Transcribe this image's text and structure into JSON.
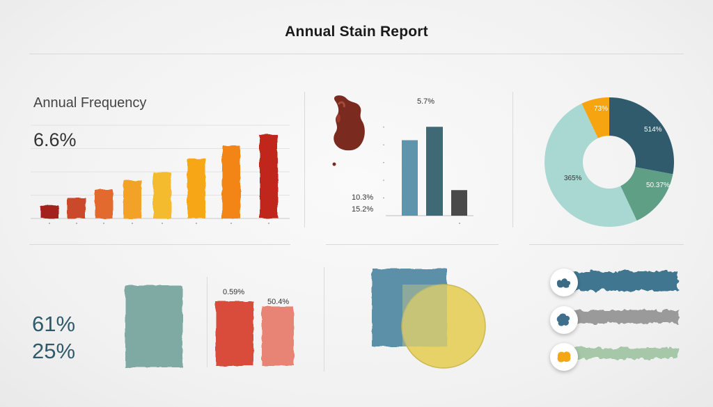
{
  "title": "Annual Stain Report",
  "colors": {
    "dark_red": "#b8261e",
    "orange": "#ef8a1c",
    "amber": "#f6a821",
    "slate_blue": "#5b8fa8",
    "dark_teal": "#3e6670",
    "charcoal": "#4a4a4a",
    "pale_teal": "#a8d6d2",
    "sage_green": "#6ba58a",
    "yellow": "#e6d05c",
    "coral": "#d94b3b",
    "salmon": "#e78475",
    "grey_teal": "#7faaa4"
  },
  "icons": [
    "stain-blot-icon",
    "splatter-icon"
  ],
  "chart_data": [
    {
      "type": "bar",
      "title": "Annual Frequency",
      "headline": "6.6%",
      "values": [
        14,
        22,
        31,
        41,
        49,
        64,
        78,
        90
      ],
      "colors": [
        "#a4231c",
        "#c9482c",
        "#e26a2e",
        "#f2a226",
        "#f4bb2e",
        "#f7a618",
        "#f38514",
        "#c1271c"
      ],
      "ylim": [
        0,
        100
      ]
    },
    {
      "type": "bar",
      "annotations": [
        "5.7%",
        "10.3%",
        "15.2%"
      ],
      "values": [
        62,
        73,
        21
      ],
      "colors": [
        "#5e95ad",
        "#3f6a75",
        "#4a4a4a"
      ],
      "ylim": [
        0,
        80
      ]
    },
    {
      "type": "pie",
      "style": "donut",
      "slices": [
        {
          "label": "73%",
          "value": 7,
          "color": "#f6a40f"
        },
        {
          "label": "514%",
          "value": 28,
          "color": "#2f5b6c"
        },
        {
          "label": "50.37%",
          "value": 15,
          "color": "#5f9f86"
        },
        {
          "label": "365%",
          "value": 50,
          "color": "#a9d7d1"
        }
      ]
    },
    {
      "type": "bar",
      "annotations": [
        "61%",
        "25%"
      ],
      "values": [
        100
      ],
      "colors": [
        "#7faaa4"
      ]
    },
    {
      "type": "bar",
      "annotations": [
        "0.59%",
        "50.4%"
      ],
      "values": [
        93,
        85
      ],
      "colors": [
        "#d94b3b",
        "#e78475"
      ]
    },
    {
      "type": "other",
      "description_free": true,
      "colors": [
        "#5b8fa8",
        "#e6d05c"
      ]
    },
    {
      "type": "bar",
      "orientation": "horizontal",
      "values": [
        100,
        100,
        100
      ],
      "colors": [
        "#3f7690",
        "#9a9a9a",
        "#a6c8a8"
      ],
      "icons": [
        "splatter-icon",
        "splatter-icon",
        "splatter-icon"
      ]
    }
  ]
}
